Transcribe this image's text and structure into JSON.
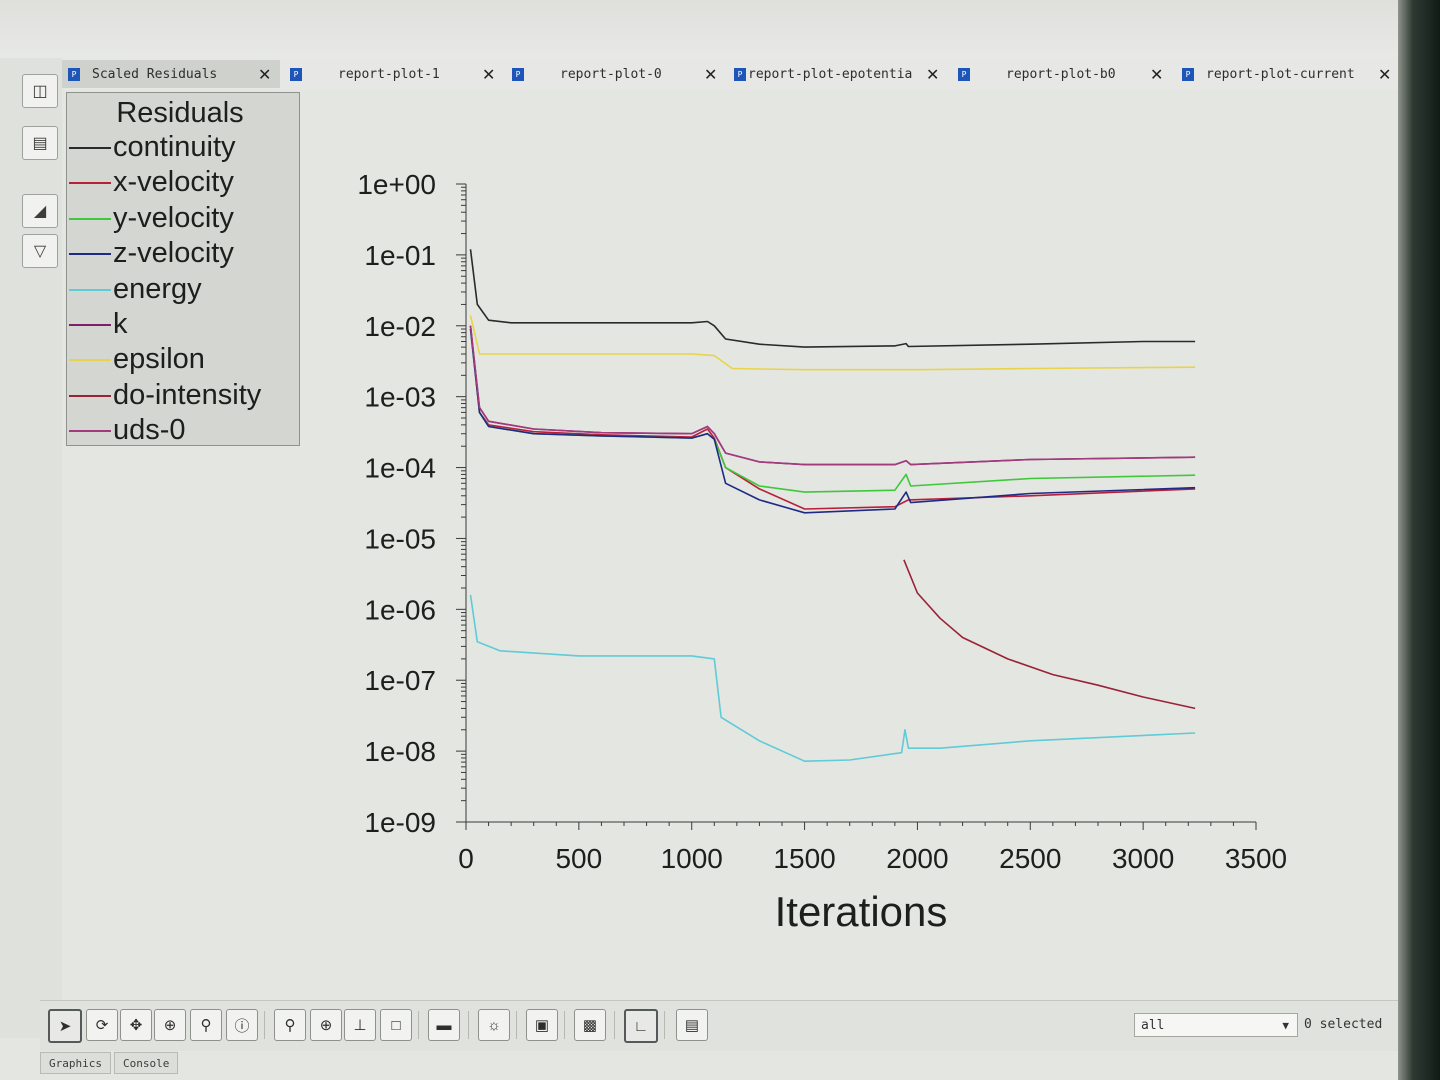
{
  "tabs": [
    {
      "label": "Scaled Residuals",
      "active": true
    },
    {
      "label": "report-plot-1",
      "active": false
    },
    {
      "label": "report-plot-0",
      "active": false
    },
    {
      "label": "report-plot-epotentia",
      "active": false
    },
    {
      "label": "report-plot-b0",
      "active": false
    },
    {
      "label": "report-plot-current",
      "active": false
    }
  ],
  "legend": {
    "title": "Residuals",
    "items": [
      {
        "label": "continuity",
        "color": "#2a2a2a"
      },
      {
        "label": "x-velocity",
        "color": "#b8203a"
      },
      {
        "label": "y-velocity",
        "color": "#3ec83a"
      },
      {
        "label": "z-velocity",
        "color": "#1f2a86"
      },
      {
        "label": "energy",
        "color": "#5fcbd6"
      },
      {
        "label": "k",
        "color": "#7d1f6b"
      },
      {
        "label": "epsilon",
        "color": "#e8d44a"
      },
      {
        "label": "do-intensity",
        "color": "#9a2236"
      },
      {
        "label": "uds-0",
        "color": "#a33a7e"
      }
    ]
  },
  "chart_data": {
    "type": "line",
    "xlabel": "Iterations",
    "ylabel": "",
    "xlim": [
      0,
      3500
    ],
    "ylim": [
      1e-09,
      1
    ],
    "yscale": "log",
    "xticks": [
      "0",
      "500",
      "1000",
      "1500",
      "2000",
      "2500",
      "3000",
      "3500"
    ],
    "yticks": [
      "1e+00",
      "1e-01",
      "1e-02",
      "1e-03",
      "1e-04",
      "1e-05",
      "1e-06",
      "1e-07",
      "1e-08",
      "1e-09"
    ],
    "series": [
      {
        "name": "continuity",
        "color": "#2a2a2a",
        "points": [
          [
            20,
            0.12
          ],
          [
            50,
            0.02
          ],
          [
            100,
            0.012
          ],
          [
            200,
            0.011
          ],
          [
            500,
            0.011
          ],
          [
            1000,
            0.011
          ],
          [
            1070,
            0.0115
          ],
          [
            1100,
            0.01
          ],
          [
            1150,
            0.0065
          ],
          [
            1300,
            0.0055
          ],
          [
            1500,
            0.005
          ],
          [
            1900,
            0.0052
          ],
          [
            1950,
            0.0056
          ],
          [
            1960,
            0.0051
          ],
          [
            2500,
            0.0055
          ],
          [
            3000,
            0.006
          ],
          [
            3230,
            0.006
          ]
        ]
      },
      {
        "name": "x-velocity",
        "color": "#b8203a",
        "points": [
          [
            20,
            0.01
          ],
          [
            60,
            0.0006
          ],
          [
            100,
            0.0004
          ],
          [
            300,
            0.00032
          ],
          [
            600,
            0.00029
          ],
          [
            1000,
            0.00027
          ],
          [
            1070,
            0.00035
          ],
          [
            1100,
            0.00026
          ],
          [
            1150,
            0.0001
          ],
          [
            1300,
            5e-05
          ],
          [
            1500,
            2.6e-05
          ],
          [
            1900,
            2.8e-05
          ],
          [
            1960,
            3.5e-05
          ],
          [
            2500,
            4e-05
          ],
          [
            3230,
            5e-05
          ]
        ]
      },
      {
        "name": "y-velocity",
        "color": "#3ec83a",
        "points": [
          [
            20,
            0.009
          ],
          [
            60,
            0.0006
          ],
          [
            100,
            0.00038
          ],
          [
            300,
            0.0003
          ],
          [
            600,
            0.00028
          ],
          [
            1000,
            0.00026
          ],
          [
            1070,
            0.0003
          ],
          [
            1100,
            0.00025
          ],
          [
            1150,
            0.0001
          ],
          [
            1300,
            5.5e-05
          ],
          [
            1500,
            4.5e-05
          ],
          [
            1900,
            4.8e-05
          ],
          [
            1950,
            8e-05
          ],
          [
            1970,
            5.5e-05
          ],
          [
            2500,
            7e-05
          ],
          [
            3230,
            7.8e-05
          ]
        ]
      },
      {
        "name": "z-velocity",
        "color": "#1f2a86",
        "points": [
          [
            20,
            0.009
          ],
          [
            60,
            0.0006
          ],
          [
            100,
            0.00038
          ],
          [
            300,
            0.0003
          ],
          [
            600,
            0.00028
          ],
          [
            1000,
            0.00026
          ],
          [
            1070,
            0.0003
          ],
          [
            1100,
            0.00025
          ],
          [
            1150,
            6e-05
          ],
          [
            1300,
            3.5e-05
          ],
          [
            1500,
            2.3e-05
          ],
          [
            1900,
            2.6e-05
          ],
          [
            1950,
            4.5e-05
          ],
          [
            1970,
            3.2e-05
          ],
          [
            2500,
            4.3e-05
          ],
          [
            3230,
            5.2e-05
          ]
        ]
      },
      {
        "name": "energy",
        "color": "#5fcbd6",
        "points": [
          [
            20,
            1.6e-06
          ],
          [
            50,
            3.5e-07
          ],
          [
            150,
            2.6e-07
          ],
          [
            500,
            2.2e-07
          ],
          [
            1000,
            2.2e-07
          ],
          [
            1100,
            2e-07
          ],
          [
            1130,
            3e-08
          ],
          [
            1300,
            1.4e-08
          ],
          [
            1500,
            7.2e-09
          ],
          [
            1700,
            7.5e-09
          ],
          [
            1930,
            9.5e-09
          ],
          [
            1945,
            2e-08
          ],
          [
            1960,
            1.1e-08
          ],
          [
            2100,
            1.1e-08
          ],
          [
            2500,
            1.4e-08
          ],
          [
            3230,
            1.8e-08
          ]
        ]
      },
      {
        "name": "k",
        "color": "#7d1f6b",
        "points": [
          [
            20,
            0.01
          ],
          [
            60,
            0.0007
          ],
          [
            100,
            0.00045
          ],
          [
            300,
            0.00035
          ],
          [
            600,
            0.00031
          ],
          [
            1000,
            0.0003
          ],
          [
            1070,
            0.00038
          ],
          [
            1100,
            0.0003
          ],
          [
            1150,
            0.00016
          ],
          [
            1300,
            0.00012
          ],
          [
            1500,
            0.00011
          ],
          [
            1900,
            0.00011
          ],
          [
            1950,
            0.000125
          ],
          [
            1970,
            0.00011
          ],
          [
            2500,
            0.00013
          ],
          [
            3230,
            0.00014
          ]
        ]
      },
      {
        "name": "epsilon",
        "color": "#e8d44a",
        "points": [
          [
            20,
            0.014
          ],
          [
            60,
            0.004
          ],
          [
            500,
            0.004
          ],
          [
            1000,
            0.004
          ],
          [
            1100,
            0.0038
          ],
          [
            1180,
            0.0025
          ],
          [
            1500,
            0.0024
          ],
          [
            2000,
            0.0024
          ],
          [
            2500,
            0.0025
          ],
          [
            3230,
            0.0026
          ]
        ]
      },
      {
        "name": "do-intensity",
        "color": "#9a2236",
        "points": [
          [
            1940,
            5e-06
          ],
          [
            2000,
            1.7e-06
          ],
          [
            2100,
            7.5e-07
          ],
          [
            2200,
            4e-07
          ],
          [
            2400,
            2e-07
          ],
          [
            2600,
            1.2e-07
          ],
          [
            2800,
            8.5e-08
          ],
          [
            3000,
            5.8e-08
          ],
          [
            3230,
            4e-08
          ]
        ]
      },
      {
        "name": "uds-0",
        "color": "#a33a7e",
        "points": [
          [
            20,
            0.01
          ],
          [
            60,
            0.0007
          ],
          [
            100,
            0.00045
          ],
          [
            300,
            0.00035
          ],
          [
            600,
            0.00031
          ],
          [
            1000,
            0.0003
          ],
          [
            1070,
            0.00038
          ],
          [
            1100,
            0.0003
          ],
          [
            1150,
            0.00016
          ],
          [
            1300,
            0.00012
          ],
          [
            1500,
            0.00011
          ],
          [
            1900,
            0.00011
          ],
          [
            1950,
            0.000125
          ],
          [
            1970,
            0.00011
          ],
          [
            2500,
            0.00013
          ],
          [
            3230,
            0.00014
          ]
        ]
      }
    ]
  },
  "toolbar": {
    "selection_value": "all",
    "selection_count": "0 selected"
  },
  "bottom_tabs": [
    "Graphics",
    "Console"
  ]
}
